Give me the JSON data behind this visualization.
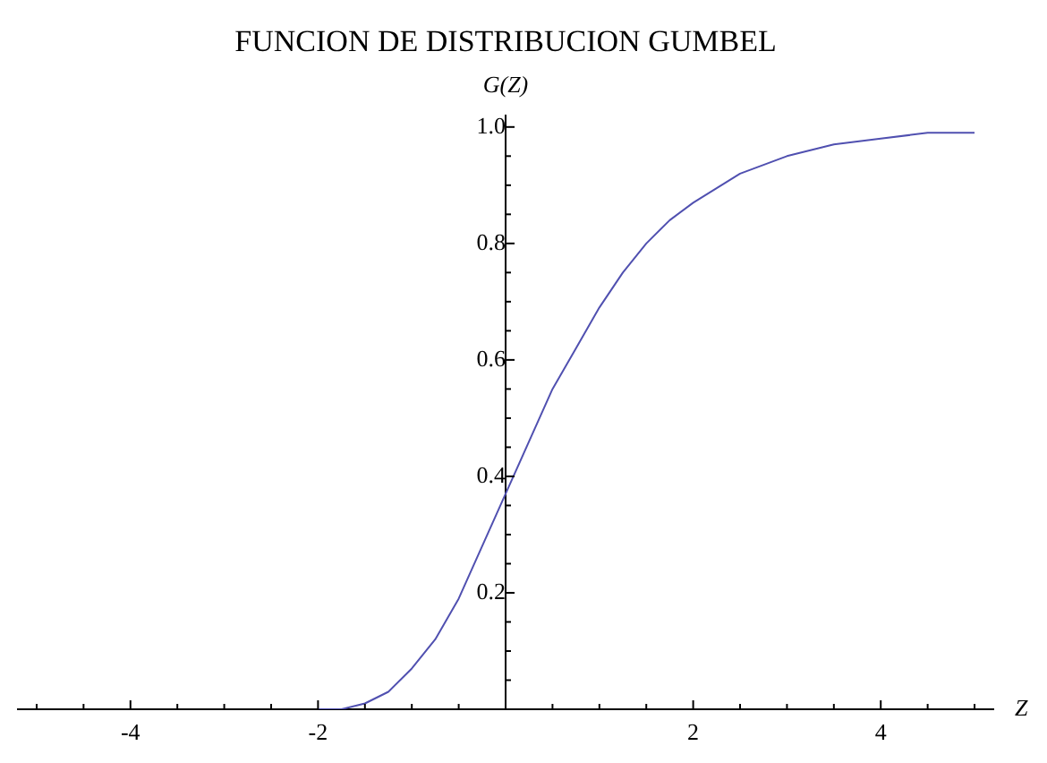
{
  "chart_data": {
    "type": "line",
    "title": "FUNCION DE DISTRIBUCION GUMBEL",
    "xlabel": "Z",
    "ylabel": "G(Z)",
    "x": [
      -2,
      -1.75,
      -1.5,
      -1.25,
      -1,
      -0.75,
      -0.5,
      -0.25,
      0,
      0.25,
      0.5,
      0.75,
      1,
      1.25,
      1.5,
      1.75,
      2,
      2.5,
      3,
      3.5,
      4,
      4.5,
      5
    ],
    "series": [
      {
        "color": "#5050b0",
        "values": [
          0.0,
          0.0,
          0.01,
          0.03,
          0.07,
          0.12,
          0.19,
          0.28,
          0.37,
          0.46,
          0.55,
          0.62,
          0.69,
          0.75,
          0.8,
          0.84,
          0.87,
          0.92,
          0.95,
          0.97,
          0.98,
          0.99,
          0.99
        ]
      }
    ],
    "xlim": [
      -5.2,
      5.2
    ],
    "ylim": [
      0,
      1.02
    ],
    "xticks": [
      {
        "value": -5,
        "label": null
      },
      {
        "value": -4.5,
        "label": null
      },
      -4,
      {
        "value": -3.5,
        "label": null
      },
      {
        "value": -3,
        "label": null
      },
      {
        "value": -2.5,
        "label": null
      },
      -2,
      {
        "value": -1.5,
        "label": null
      },
      {
        "value": -1,
        "label": null
      },
      {
        "value": -0.5,
        "label": null
      },
      {
        "value": 0.5,
        "label": null
      },
      {
        "value": 1,
        "label": null
      },
      {
        "value": 1.5,
        "label": null
      },
      2,
      {
        "value": 2.5,
        "label": null
      },
      {
        "value": 3,
        "label": null
      },
      {
        "value": 3.5,
        "label": null
      },
      4,
      {
        "value": 4.5,
        "label": null
      },
      {
        "value": 5,
        "label": null
      }
    ],
    "yticks": [
      {
        "value": 0.05,
        "label": null
      },
      {
        "value": 0.1,
        "label": null
      },
      {
        "value": 0.15,
        "label": null
      },
      0.2,
      {
        "value": 0.25,
        "label": null
      },
      {
        "value": 0.3,
        "label": null
      },
      {
        "value": 0.35,
        "label": null
      },
      0.4,
      {
        "value": 0.45,
        "label": null
      },
      {
        "value": 0.5,
        "label": null
      },
      {
        "value": 0.55,
        "label": null
      },
      0.6,
      {
        "value": 0.65,
        "label": null
      },
      {
        "value": 0.7,
        "label": null
      },
      {
        "value": 0.75,
        "label": null
      },
      0.8,
      {
        "value": 0.85,
        "label": null
      },
      {
        "value": 0.9,
        "label": null
      },
      {
        "value": 0.95,
        "label": null
      },
      {
        "value": 1,
        "label": "1.0"
      }
    ],
    "grid": false,
    "legend": false,
    "marker": "none",
    "line_style": "solid"
  }
}
